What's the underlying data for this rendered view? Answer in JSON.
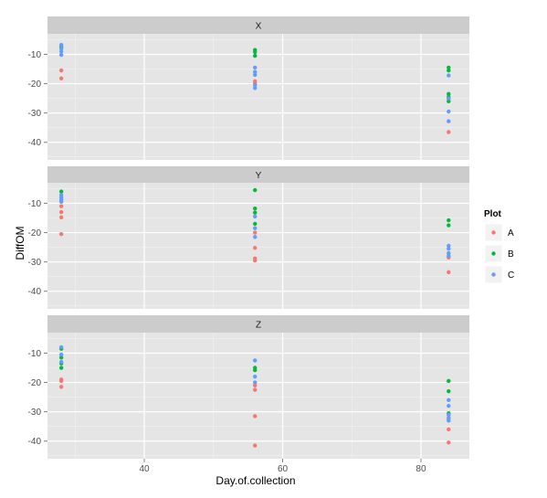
{
  "chart_data": {
    "type": "scatter",
    "xlabel": "Day.of.collection",
    "ylabel": "DiffOM",
    "xlim": [
      26,
      87
    ],
    "ylim": [
      -46,
      -3
    ],
    "x_ticks": [
      40,
      60,
      80
    ],
    "y_ticks": [
      -10,
      -20,
      -30,
      -40
    ],
    "grid": true,
    "legend": {
      "title": "Plot",
      "position": "right",
      "entries": [
        {
          "name": "A",
          "color": "#F8766D"
        },
        {
          "name": "B",
          "color": "#00BA38"
        },
        {
          "name": "C",
          "color": "#619CFF"
        }
      ]
    },
    "facets": [
      {
        "label": "X",
        "series": [
          {
            "name": "A",
            "points": [
              [
                28,
                -15.5
              ],
              [
                28,
                -18.2
              ],
              [
                56,
                -19.2
              ],
              [
                56,
                -20.0
              ],
              [
                84,
                -25.2
              ],
              [
                84,
                -36.5
              ]
            ]
          },
          {
            "name": "B",
            "points": [
              [
                28,
                -7.5
              ],
              [
                56,
                -8.5
              ],
              [
                56,
                -9.2
              ],
              [
                56,
                -10.5
              ],
              [
                84,
                -14.5
              ],
              [
                84,
                -15.5
              ],
              [
                84,
                -23.5
              ],
              [
                84,
                -24.5
              ],
              [
                84,
                -26.0
              ]
            ]
          },
          {
            "name": "C",
            "points": [
              [
                28,
                -6.8
              ],
              [
                28,
                -8.0
              ],
              [
                28,
                -9.0
              ],
              [
                28,
                -10.2
              ],
              [
                56,
                -14.5
              ],
              [
                56,
                -16.0
              ],
              [
                56,
                -17.0
              ],
              [
                56,
                -20.5
              ],
              [
                56,
                -21.5
              ],
              [
                84,
                -17.2
              ],
              [
                84,
                -25.0
              ],
              [
                84,
                -29.5
              ],
              [
                84,
                -32.8
              ]
            ]
          }
        ]
      },
      {
        "label": "Y",
        "series": [
          {
            "name": "A",
            "points": [
              [
                28,
                -11.0
              ],
              [
                28,
                -13.0
              ],
              [
                28,
                -14.8
              ],
              [
                28,
                -20.5
              ],
              [
                56,
                -20.0
              ],
              [
                56,
                -25.2
              ],
              [
                56,
                -28.8
              ],
              [
                56,
                -29.5
              ],
              [
                84,
                -28.5
              ],
              [
                84,
                -33.5
              ]
            ]
          },
          {
            "name": "B",
            "points": [
              [
                28,
                -6.0
              ],
              [
                56,
                -5.5
              ],
              [
                56,
                -11.8
              ],
              [
                56,
                -13.2
              ],
              [
                56,
                -17.0
              ],
              [
                84,
                -15.8
              ],
              [
                84,
                -17.5
              ]
            ]
          },
          {
            "name": "C",
            "points": [
              [
                28,
                -7.2
              ],
              [
                28,
                -8.0
              ],
              [
                28,
                -8.8
              ],
              [
                28,
                -9.5
              ],
              [
                56,
                -14.5
              ],
              [
                56,
                -18.5
              ],
              [
                56,
                -21.5
              ],
              [
                84,
                -24.5
              ],
              [
                84,
                -25.5
              ],
              [
                84,
                -27.0
              ],
              [
                84,
                -28.0
              ]
            ]
          }
        ]
      },
      {
        "label": "Z",
        "series": [
          {
            "name": "A",
            "points": [
              [
                28,
                -19.0
              ],
              [
                28,
                -19.5
              ],
              [
                28,
                -21.5
              ],
              [
                56,
                -21.0
              ],
              [
                56,
                -22.5
              ],
              [
                56,
                -31.5
              ],
              [
                56,
                -41.5
              ],
              [
                84,
                -32.5
              ],
              [
                84,
                -36.0
              ],
              [
                84,
                -40.5
              ]
            ]
          },
          {
            "name": "B",
            "points": [
              [
                28,
                -8.5
              ],
              [
                28,
                -11.5
              ],
              [
                28,
                -13.5
              ],
              [
                28,
                -15.0
              ],
              [
                56,
                -15.0
              ],
              [
                56,
                -15.8
              ],
              [
                84,
                -19.5
              ],
              [
                84,
                -23.0
              ],
              [
                84,
                -30.5
              ]
            ]
          },
          {
            "name": "C",
            "points": [
              [
                28,
                -8.0
              ],
              [
                28,
                -10.5
              ],
              [
                28,
                -13.0
              ],
              [
                56,
                -12.5
              ],
              [
                56,
                -18.0
              ],
              [
                56,
                -20.0
              ],
              [
                84,
                -26.0
              ],
              [
                84,
                -28.0
              ],
              [
                84,
                -31.0
              ],
              [
                84,
                -32.0
              ],
              [
                84,
                -33.0
              ]
            ]
          }
        ]
      }
    ]
  }
}
